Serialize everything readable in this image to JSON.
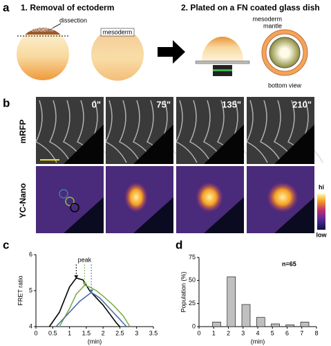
{
  "panel_labels": [
    "a",
    "b",
    "c",
    "d"
  ],
  "panel_a": {
    "step1": "1. Removal of ectoderm",
    "dissection": "dissection",
    "ectoderm": "ectoderm",
    "mesoderm": "mesoderm",
    "step2": "2. Plated on a FN coated glass dish",
    "mantle_lines": [
      "mesoderm",
      "mantle"
    ],
    "bottom_view": "bottom view"
  },
  "panel_b": {
    "rows": [
      "mRFP",
      "YC-Nano"
    ],
    "times": [
      "0\"",
      "75\"",
      "135\"",
      "210\""
    ],
    "colorbar": [
      "hi",
      "low"
    ]
  },
  "chart_data": [
    {
      "type": "line",
      "annotation": "peak",
      "xlabel": "(min)",
      "ylabel": "FRET ratio",
      "xlim": [
        0,
        3.5
      ],
      "xticks": [
        0,
        0.5,
        1,
        1.5,
        2,
        2.5,
        3,
        3.5
      ],
      "ylim": [
        4,
        6
      ],
      "yticks": [
        4,
        5,
        6
      ],
      "series": [
        {
          "color": "#000000",
          "x": [
            0.4,
            0.7,
            1.0,
            1.2,
            1.4,
            1.6,
            1.8,
            2.0,
            2.2,
            2.4,
            2.5
          ],
          "values": [
            4.0,
            4.4,
            5.1,
            5.35,
            5.3,
            5.0,
            4.8,
            4.6,
            4.35,
            4.1,
            4.0
          ]
        },
        {
          "color": "#7fae4f",
          "x": [
            0.7,
            1.0,
            1.2,
            1.45,
            1.6,
            1.8,
            2.0,
            2.3,
            2.6,
            2.8
          ],
          "values": [
            4.0,
            4.5,
            4.9,
            5.15,
            5.1,
            5.0,
            4.85,
            4.6,
            4.3,
            4.0
          ]
        },
        {
          "color": "#4a6fa5",
          "x": [
            0.6,
            1.0,
            1.3,
            1.65,
            1.9,
            2.2,
            2.5,
            2.7
          ],
          "values": [
            4.0,
            4.4,
            4.7,
            4.95,
            4.8,
            4.5,
            4.2,
            4.0
          ]
        }
      ]
    },
    {
      "type": "bar",
      "title": "n=65",
      "xlabel": "(min)",
      "ylabel": "Population (%)",
      "x": [
        1.2,
        2.2,
        3.2,
        4.2,
        5.2,
        6.2,
        7.2
      ],
      "values": [
        5,
        54,
        24,
        10,
        3,
        2,
        5
      ],
      "color": "#c0c0c0",
      "xlim": [
        0,
        8
      ],
      "xticks": [
        0,
        1,
        2,
        3,
        4,
        5,
        6,
        7,
        8
      ],
      "ylim": [
        0,
        75
      ],
      "yticks": [
        0,
        25,
        50,
        75
      ]
    }
  ]
}
